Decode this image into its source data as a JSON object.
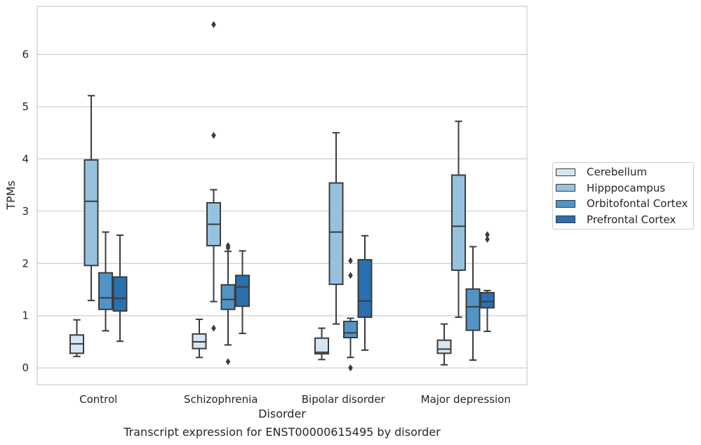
{
  "chart_data": {
    "type": "boxplot",
    "title": "",
    "caption": "Transcript expression for ENST00000615495 by disorder",
    "xlabel": "Disorder",
    "ylabel": "TPMs",
    "ylim": [
      -0.32,
      6.92
    ],
    "yticks": [
      "0",
      "1",
      "2",
      "3",
      "4",
      "5",
      "6"
    ],
    "categories": [
      "Control",
      "Schizophrenia",
      "Bipolar disorder",
      "Major depression"
    ],
    "grid": "horizontal",
    "legend_position": "right",
    "series": [
      {
        "name": "Cerebellum",
        "color": "#d6e5f2",
        "boxes": [
          {
            "min": 0.22,
            "q1": 0.28,
            "median": 0.46,
            "q3": 0.63,
            "max": 0.92,
            "outliers": []
          },
          {
            "min": 0.2,
            "q1": 0.37,
            "median": 0.5,
            "q3": 0.65,
            "max": 0.93,
            "outliers": []
          },
          {
            "min": 0.16,
            "q1": 0.27,
            "median": 0.3,
            "q3": 0.57,
            "max": 0.76,
            "outliers": []
          },
          {
            "min": 0.06,
            "q1": 0.28,
            "median": 0.36,
            "q3": 0.53,
            "max": 0.84,
            "outliers": []
          }
        ]
      },
      {
        "name": "Hipppocampus",
        "color": "#97c2de",
        "boxes": [
          {
            "min": 1.29,
            "q1": 1.96,
            "median": 3.19,
            "q3": 3.98,
            "max": 5.21,
            "outliers": []
          },
          {
            "min": 1.27,
            "q1": 2.34,
            "median": 2.75,
            "q3": 3.16,
            "max": 3.41,
            "outliers": [
              6.57,
              4.45,
              0.76
            ]
          },
          {
            "min": 0.84,
            "q1": 1.6,
            "median": 2.6,
            "q3": 3.54,
            "max": 4.5,
            "outliers": []
          },
          {
            "min": 0.97,
            "q1": 1.87,
            "median": 2.71,
            "q3": 3.69,
            "max": 4.72,
            "outliers": []
          }
        ]
      },
      {
        "name": "Orbitofontal Cortex",
        "color": "#5294c6",
        "boxes": [
          {
            "min": 0.71,
            "q1": 1.12,
            "median": 1.34,
            "q3": 1.82,
            "max": 2.6,
            "outliers": []
          },
          {
            "min": 0.44,
            "q1": 1.12,
            "median": 1.31,
            "q3": 1.59,
            "max": 2.23,
            "outliers": [
              2.34,
              2.3,
              0.12
            ]
          },
          {
            "min": 0.2,
            "q1": 0.58,
            "median": 0.67,
            "q3": 0.89,
            "max": 0.95,
            "outliers": [
              2.05,
              1.77,
              0.0
            ]
          },
          {
            "min": 0.15,
            "q1": 0.72,
            "median": 1.17,
            "q3": 1.51,
            "max": 2.32,
            "outliers": []
          }
        ]
      },
      {
        "name": "Prefrontal Cortex",
        "color": "#2a6fae",
        "boxes": [
          {
            "min": 0.51,
            "q1": 1.09,
            "median": 1.33,
            "q3": 1.74,
            "max": 2.54,
            "outliers": []
          },
          {
            "min": 0.66,
            "q1": 1.18,
            "median": 1.55,
            "q3": 1.77,
            "max": 2.24,
            "outliers": []
          },
          {
            "min": 0.34,
            "q1": 0.97,
            "median": 1.28,
            "q3": 2.07,
            "max": 2.53,
            "outliers": []
          },
          {
            "min": 0.7,
            "q1": 1.15,
            "median": 1.27,
            "q3": 1.44,
            "max": 1.48,
            "outliers": [
              2.55,
              2.46
            ]
          }
        ]
      }
    ]
  }
}
